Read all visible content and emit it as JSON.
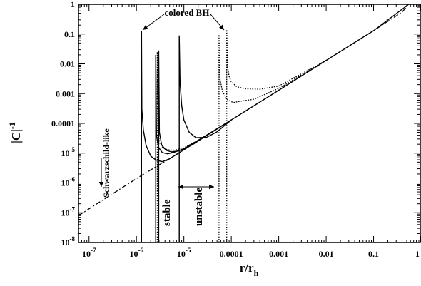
{
  "chart_data": {
    "type": "line",
    "xlabel": "r/r_h",
    "ylabel": "|C|^-1",
    "x_scale": "log",
    "y_scale": "log",
    "xlim": [
      6e-08,
      1
    ],
    "ylim": [
      1e-08,
      1
    ],
    "grid": false,
    "legend": "none",
    "x_ticks": [
      {
        "label": "10",
        "exp": "-7",
        "value": 1e-07
      },
      {
        "label": "10",
        "exp": "-6",
        "value": 1e-06
      },
      {
        "label": "10",
        "exp": "-5",
        "value": 1e-05
      },
      {
        "label": "0.0001",
        "exp": "",
        "value": 0.0001
      },
      {
        "label": "0.001",
        "exp": "",
        "value": 0.001
      },
      {
        "label": "0.01",
        "exp": "",
        "value": 0.01
      },
      {
        "label": "0.1",
        "exp": "",
        "value": 0.1
      },
      {
        "label": "1",
        "exp": "",
        "value": 1
      }
    ],
    "y_ticks": [
      {
        "label": "1",
        "exp": "",
        "value": 1
      },
      {
        "label": "0.1",
        "exp": "",
        "value": 0.1
      },
      {
        "label": "0.01",
        "exp": "",
        "value": 0.01
      },
      {
        "label": "0.001",
        "exp": "",
        "value": 0.001
      },
      {
        "label": "0.0001",
        "exp": "",
        "value": 0.0001
      },
      {
        "label": "10",
        "exp": "-5",
        "value": 1e-05
      },
      {
        "label": "10",
        "exp": "-6",
        "value": 1e-06
      },
      {
        "label": "10",
        "exp": "-7",
        "value": 1e-07
      },
      {
        "label": "10",
        "exp": "-8",
        "value": 1e-08
      }
    ],
    "annotations": {
      "colored_bh": "colored BH",
      "schwarzschild": "Schwarzschild-like",
      "stable": "stable",
      "unstable": "unstable"
    },
    "series": [
      {
        "style": "dashdot",
        "points": [
          [
            6e-08,
            8e-08
          ],
          [
            1e-07,
            1.35e-07
          ],
          [
            1e-06,
            1.4e-06
          ],
          [
            2.5e-06,
            3.4e-06
          ],
          [
            5e-06,
            6.5e-06
          ],
          [
            1e-05,
            1.3e-05
          ],
          [
            3e-05,
            3.9e-05
          ],
          [
            0.0001,
            0.00013
          ],
          [
            0.001,
            0.0013
          ],
          [
            0.01,
            0.013
          ],
          [
            0.1,
            0.13
          ],
          [
            0.4,
            0.55
          ],
          [
            0.55,
            1
          ]
        ]
      },
      {
        "style": "solid",
        "points": [
          [
            1.28e-06,
            1e-08
          ],
          [
            1.28e-06,
            0.13
          ],
          [
            1.3e-06,
            0.0003
          ],
          [
            1.4e-06,
            6e-05
          ],
          [
            1.6e-06,
            1.8e-05
          ],
          [
            2e-06,
            8e-06
          ],
          [
            2.6e-06,
            5.8e-06
          ],
          [
            3.5e-06,
            5.2e-06
          ],
          [
            5e-06,
            6.5e-06
          ],
          [
            1e-05,
            1.3e-05
          ],
          [
            3e-05,
            3.9e-05
          ],
          [
            0.0001,
            0.00013
          ],
          [
            0.001,
            0.0013
          ],
          [
            0.01,
            0.013
          ],
          [
            0.1,
            0.13
          ],
          [
            0.55,
            1
          ]
        ]
      },
      {
        "style": "solid",
        "points": [
          [
            2.55e-06,
            1e-08
          ],
          [
            2.55e-06,
            0.02
          ],
          [
            2.65e-06,
            4e-05
          ],
          [
            2.9e-06,
            1.6e-05
          ],
          [
            3.5e-06,
            1.05e-05
          ],
          [
            4.5e-06,
            9.5e-06
          ],
          [
            6e-06,
            1.05e-05
          ],
          [
            1e-05,
            1.4e-05
          ],
          [
            3e-05,
            4e-05
          ],
          [
            0.0001,
            0.00013
          ]
        ]
      },
      {
        "style": "solid",
        "points": [
          [
            2.95e-06,
            1e-08
          ],
          [
            2.95e-06,
            0.028
          ],
          [
            3.05e-06,
            5e-05
          ],
          [
            3.4e-06,
            1.9e-05
          ],
          [
            4.2e-06,
            1.25e-05
          ],
          [
            5.5e-06,
            1.1e-05
          ],
          [
            8e-06,
            1.2e-05
          ],
          [
            1.5e-05,
            1.9e-05
          ],
          [
            3e-05,
            3.9e-05
          ],
          [
            0.0001,
            0.00013
          ]
        ]
      },
      {
        "style": "solid",
        "points": [
          [
            8e-06,
            1e-08
          ],
          [
            8e-06,
            0.09
          ],
          [
            8.3e-06,
            0.0025
          ],
          [
            9e-06,
            0.0004
          ],
          [
            1e-05,
            0.00013
          ],
          [
            1.3e-05,
            5e-05
          ],
          [
            1.8e-05,
            3.3e-05
          ],
          [
            3e-05,
            3.4e-05
          ],
          [
            5e-05,
            5.2e-05
          ],
          [
            0.0001,
            0.00013
          ]
        ]
      },
      {
        "style": "dotted",
        "points": [
          [
            2.75e-06,
            1e-08
          ],
          [
            2.75e-06,
            0.025
          ],
          [
            2.85e-06,
            5e-05
          ],
          [
            3.1e-06,
            2.2e-05
          ],
          [
            3.6e-06,
            1.5e-05
          ],
          [
            4.5e-06,
            1.3e-05
          ],
          [
            6e-06,
            1.25e-05
          ],
          [
            1e-05,
            1.5e-05
          ],
          [
            3e-05,
            3.9e-05
          ],
          [
            0.0001,
            0.00013
          ]
        ]
      },
      {
        "style": "dotted",
        "points": [
          [
            5.5e-05,
            1e-08
          ],
          [
            5.5e-05,
            0.095
          ],
          [
            5.8e-05,
            0.003
          ],
          [
            6.5e-05,
            0.0012
          ],
          [
            8e-05,
            0.00065
          ],
          [
            0.00011,
            0.0005
          ],
          [
            0.00015,
            0.00055
          ],
          [
            0.0003,
            0.00065
          ],
          [
            0.001,
            0.0015
          ],
          [
            0.01,
            0.013
          ]
        ]
      },
      {
        "style": "dotted",
        "points": [
          [
            8e-05,
            1e-08
          ],
          [
            8e-05,
            0.14
          ],
          [
            8.3e-05,
            0.008
          ],
          [
            9e-05,
            0.0038
          ],
          [
            0.0001,
            0.0025
          ],
          [
            0.00013,
            0.0017
          ],
          [
            0.0002,
            0.00145
          ],
          [
            0.0004,
            0.0014
          ],
          [
            0.001,
            0.0018
          ],
          [
            0.01,
            0.013
          ]
        ]
      }
    ]
  }
}
